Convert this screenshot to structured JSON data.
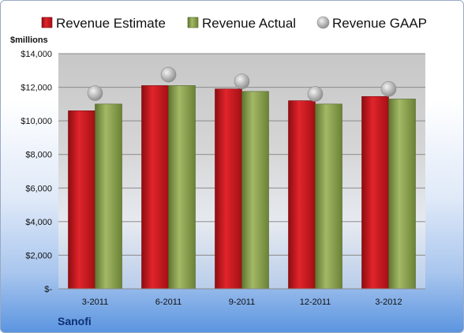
{
  "chart_data": {
    "type": "bar",
    "ylabel": "$millions",
    "company": "Sanofi",
    "categories": [
      "3-2011",
      "6-2011",
      "9-2011",
      "12-2011",
      "3-2012"
    ],
    "series": [
      {
        "name": "Revenue Estimate",
        "mark": "bar",
        "color": "#c4161c",
        "values": [
          10600,
          12100,
          11900,
          11200,
          11450
        ]
      },
      {
        "name": "Revenue Actual",
        "mark": "bar",
        "color": "#8aa04a",
        "values": [
          11000,
          12100,
          11750,
          11000,
          11300
        ]
      },
      {
        "name": "Revenue GAAP",
        "mark": "dot",
        "color": "#a9a9a9",
        "values": [
          11650,
          12750,
          12350,
          11600,
          11900
        ]
      }
    ],
    "ylim": [
      0,
      14000
    ],
    "y_ticks": [
      0,
      2000,
      4000,
      6000,
      8000,
      10000,
      12000,
      14000
    ],
    "y_tick_labels": [
      "$-",
      "$2,000",
      "$4,000",
      "$6,000",
      "$8,000",
      "$10,000",
      "$12,000",
      "$14,000"
    ],
    "grid": true,
    "legend_position": "top"
  }
}
